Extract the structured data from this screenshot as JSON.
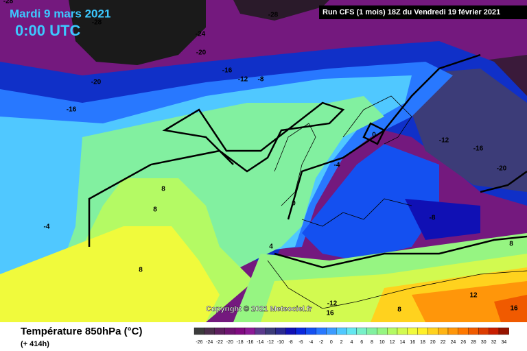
{
  "header": {
    "date": "Mardi 9 mars 2021",
    "time": "0:00 UTC",
    "run": "Run CFS (1 mois) 18Z du Vendredi 19 février 2021"
  },
  "copyright": "Copyright © 2021 Meteociel.fr",
  "footer": {
    "title": "Température 850hPa (°C)",
    "lead": "(+ 414h)"
  },
  "contour_labels": [
    "-28",
    "-28",
    "-28",
    "-24",
    "-20",
    "-16",
    "-12",
    "-8",
    "-20",
    "-16",
    "0",
    "-4",
    "-12",
    "-16",
    "-20",
    "8",
    "8",
    "-4",
    "0",
    "4",
    "8",
    "-8",
    "8",
    "-12",
    "16",
    "8",
    "12",
    "16"
  ],
  "legend": {
    "labels": [
      -26,
      -24,
      -22,
      -20,
      -18,
      -16,
      -14,
      -12,
      -10,
      -8,
      -6,
      -4,
      -2,
      0,
      2,
      4,
      6,
      8,
      10,
      12,
      14,
      16,
      18,
      20,
      22,
      24,
      26,
      28,
      30,
      32,
      34
    ],
    "colors": [
      "#3c3c3c",
      "#4b2f4b",
      "#5d1f5d",
      "#6e1470",
      "#800a80",
      "#8c1a96",
      "#5b3a8c",
      "#3c3c78",
      "#2a2a90",
      "#1010b4",
      "#0a28dc",
      "#1450f0",
      "#2878ff",
      "#3c9bff",
      "#50c8ff",
      "#64e6f0",
      "#78f0c8",
      "#82f0a0",
      "#96f582",
      "#b4fa64",
      "#d2fa50",
      "#f0fa3c",
      "#fff028",
      "#ffd21e",
      "#ffb414",
      "#ff960a",
      "#ff7800",
      "#f05a00",
      "#dc3c00",
      "#c81e00",
      "#961400"
    ]
  }
}
